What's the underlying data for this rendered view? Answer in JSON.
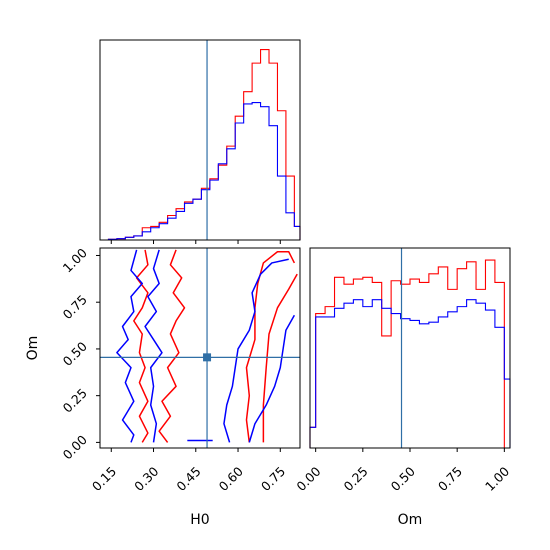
{
  "chart_data": [
    {
      "type": "histogram",
      "panel": "marginal-H0",
      "xlim": [
        0.11,
        0.82
      ],
      "bin_edges": [
        0.11,
        0.14,
        0.17,
        0.2,
        0.23,
        0.26,
        0.29,
        0.32,
        0.35,
        0.38,
        0.41,
        0.44,
        0.47,
        0.5,
        0.53,
        0.56,
        0.59,
        0.62,
        0.65,
        0.68,
        0.71,
        0.74,
        0.77,
        0.8,
        0.82
      ],
      "truth": 0.49,
      "series": [
        {
          "color": "#ff0000",
          "values": [
            0,
            0.5,
            1,
            2,
            3,
            9,
            10,
            13,
            18,
            23,
            28,
            30,
            38,
            45,
            55,
            69,
            91,
            109,
            130,
            140,
            130,
            95,
            47,
            10
          ]
        },
        {
          "color": "#0000ff",
          "values": [
            0,
            0.5,
            1,
            2,
            3,
            6,
            9,
            12,
            16,
            21,
            27,
            30,
            37,
            44,
            56,
            67,
            86,
            100,
            101,
            98,
            84,
            47,
            20,
            10
          ]
        }
      ]
    },
    {
      "type": "contour",
      "panel": "joint-H0-Om",
      "xlim": [
        0.11,
        0.82
      ],
      "ylim": [
        -0.03,
        1.04
      ],
      "xticks": [
        "0.15",
        "0.30",
        "0.45",
        "0.60",
        "0.75"
      ],
      "xtick_values": [
        0.15,
        0.3,
        0.45,
        0.6,
        0.75
      ],
      "yticks": [
        "0.00",
        "0.25",
        "0.50",
        "0.75",
        "1.00"
      ],
      "ytick_values": [
        0,
        0.25,
        0.5,
        0.75,
        1.0
      ],
      "xlabel": "H0",
      "ylabel": "Om",
      "truth": [
        0.49,
        0.455
      ],
      "series": [
        {
          "color": "#ff0000",
          "contours": [
            [
              [
                0.27,
                1.03
              ],
              [
                0.28,
                0.95
              ],
              [
                0.24,
                0.88
              ],
              [
                0.28,
                0.8
              ],
              [
                0.26,
                0.72
              ],
              [
                0.23,
                0.65
              ],
              [
                0.26,
                0.58
              ],
              [
                0.25,
                0.48
              ],
              [
                0.27,
                0.4
              ],
              [
                0.25,
                0.32
              ],
              [
                0.28,
                0.22
              ],
              [
                0.25,
                0.14
              ],
              [
                0.28,
                0.05
              ],
              [
                0.26,
                0.0
              ]
            ],
            [
              [
                0.38,
                1.03
              ],
              [
                0.36,
                0.95
              ],
              [
                0.4,
                0.88
              ],
              [
                0.37,
                0.8
              ],
              [
                0.41,
                0.72
              ],
              [
                0.38,
                0.65
              ],
              [
                0.36,
                0.58
              ],
              [
                0.39,
                0.48
              ],
              [
                0.35,
                0.4
              ],
              [
                0.38,
                0.3
              ],
              [
                0.33,
                0.22
              ],
              [
                0.36,
                0.14
              ],
              [
                0.32,
                0.06
              ],
              [
                0.35,
                0.0
              ]
            ],
            [
              [
                0.64,
                0.0
              ],
              [
                0.63,
                0.12
              ],
              [
                0.64,
                0.25
              ],
              [
                0.63,
                0.4
              ],
              [
                0.66,
                0.55
              ],
              [
                0.66,
                0.72
              ],
              [
                0.67,
                0.85
              ],
              [
                0.69,
                0.96
              ],
              [
                0.74,
                1.02
              ],
              [
                0.78,
                1.02
              ],
              [
                0.8,
                0.96
              ]
            ],
            [
              [
                0.69,
                0.0
              ],
              [
                0.69,
                0.2
              ],
              [
                0.7,
                0.4
              ],
              [
                0.71,
                0.58
              ],
              [
                0.74,
                0.72
              ],
              [
                0.78,
                0.82
              ],
              [
                0.81,
                0.9
              ]
            ]
          ]
        },
        {
          "color": "#0000ff",
          "contours": [
            [
              [
                0.24,
                1.03
              ],
              [
                0.22,
                0.92
              ],
              [
                0.26,
                0.85
              ],
              [
                0.22,
                0.78
              ],
              [
                0.23,
                0.7
              ],
              [
                0.19,
                0.62
              ],
              [
                0.21,
                0.55
              ],
              [
                0.17,
                0.48
              ],
              [
                0.22,
                0.4
              ],
              [
                0.2,
                0.32
              ],
              [
                0.23,
                0.22
              ],
              [
                0.19,
                0.12
              ],
              [
                0.23,
                0.04
              ],
              [
                0.22,
                0.0
              ]
            ],
            [
              [
                0.32,
                1.03
              ],
              [
                0.3,
                0.93
              ],
              [
                0.32,
                0.85
              ],
              [
                0.28,
                0.78
              ],
              [
                0.31,
                0.7
              ],
              [
                0.27,
                0.62
              ],
              [
                0.3,
                0.55
              ],
              [
                0.33,
                0.48
              ],
              [
                0.29,
                0.4
              ],
              [
                0.3,
                0.3
              ],
              [
                0.29,
                0.2
              ],
              [
                0.31,
                0.1
              ],
              [
                0.3,
                0.0
              ]
            ],
            [
              [
                0.42,
                0.01
              ],
              [
                0.51,
                0.01
              ]
            ],
            [
              [
                0.57,
                0.0
              ],
              [
                0.55,
                0.1
              ],
              [
                0.56,
                0.2
              ],
              [
                0.58,
                0.3
              ],
              [
                0.59,
                0.4
              ],
              [
                0.6,
                0.5
              ],
              [
                0.64,
                0.6
              ],
              [
                0.66,
                0.7
              ],
              [
                0.65,
                0.8
              ],
              [
                0.68,
                0.9
              ],
              [
                0.72,
                0.96
              ],
              [
                0.78,
                0.98
              ]
            ],
            [
              [
                0.64,
                0.0
              ],
              [
                0.66,
                0.1
              ],
              [
                0.7,
                0.2
              ],
              [
                0.73,
                0.3
              ],
              [
                0.75,
                0.4
              ],
              [
                0.76,
                0.5
              ],
              [
                0.77,
                0.6
              ],
              [
                0.8,
                0.68
              ]
            ]
          ]
        }
      ]
    },
    {
      "type": "histogram",
      "panel": "marginal-Om",
      "xlim": [
        -0.03,
        1.03
      ],
      "xticks": [
        "0.00",
        "0.25",
        "0.50",
        "0.75",
        "1.00"
      ],
      "xtick_values": [
        0,
        0.25,
        0.5,
        0.75,
        1.0
      ],
      "xlabel": "Om",
      "bin_edges": [
        -0.03,
        0.0,
        0.05,
        0.1,
        0.15,
        0.2,
        0.25,
        0.3,
        0.35,
        0.4,
        0.45,
        0.5,
        0.55,
        0.6,
        0.65,
        0.7,
        0.75,
        0.8,
        0.85,
        0.9,
        0.95,
        1.0,
        1.03
      ],
      "truth": 0.455,
      "series": [
        {
          "color": "#ff0000",
          "values": [
            12,
            78,
            82,
            99,
            95,
            98,
            99,
            96,
            65,
            97,
            95,
            98,
            96,
            101,
            105,
            92,
            104,
            108,
            92,
            109,
            96,
            0
          ]
        },
        {
          "color": "#0000ff",
          "values": [
            12,
            76,
            76,
            81,
            84,
            86,
            82,
            86,
            81,
            78,
            75,
            74,
            72,
            73,
            76,
            79,
            82,
            86,
            84,
            80,
            70,
            40
          ]
        }
      ]
    }
  ],
  "theme": {
    "truth_color": "#2f6fa6",
    "axis_color": "#000000"
  }
}
